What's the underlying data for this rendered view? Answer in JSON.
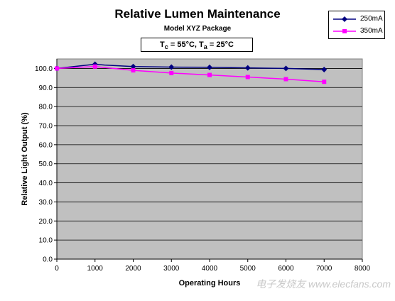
{
  "chart_data": {
    "type": "line",
    "title": "Relative Lumen Maintenance",
    "subtitle": "Model XYZ Package",
    "conditions": {
      "tc_label": "T",
      "tc_sub": "c",
      "tc_value": " = 55°C, ",
      "ta_label": "T",
      "ta_sub": "a",
      "ta_value": " = 25°C"
    },
    "xlabel": "Operating Hours",
    "ylabel": "Relative Light Output (%)",
    "xlim": [
      0,
      8000
    ],
    "ylim": [
      0,
      105
    ],
    "xticks": [
      0,
      1000,
      2000,
      3000,
      4000,
      5000,
      6000,
      7000,
      8000
    ],
    "yticks": [
      0.0,
      10.0,
      20.0,
      30.0,
      40.0,
      50.0,
      60.0,
      70.0,
      80.0,
      90.0,
      100.0
    ],
    "grid": true,
    "plot_background": "#c0c0c0",
    "legend_position": "top-right",
    "series": [
      {
        "name": "250mA",
        "color": "#000080",
        "marker": "diamond",
        "x": [
          0,
          1000,
          1250,
          2000,
          3000,
          4000,
          5000,
          6000,
          7000
        ],
        "y": [
          100.0,
          102.2,
          101.8,
          101.0,
          100.7,
          100.6,
          100.3,
          100.0,
          99.4
        ],
        "marker_x": [
          0,
          1000,
          2000,
          3000,
          4000,
          5000,
          6000,
          7000
        ]
      },
      {
        "name": "350mA",
        "color": "#ff00ff",
        "marker": "square",
        "x": [
          0,
          1000,
          2000,
          3000,
          4000,
          5000,
          6000,
          7000
        ],
        "y": [
          100.0,
          101.0,
          99.0,
          97.6,
          96.6,
          95.5,
          94.4,
          93.0
        ],
        "marker_x": [
          0,
          1000,
          2000,
          3000,
          4000,
          5000,
          6000,
          7000
        ]
      }
    ]
  },
  "watermark": "电子发烧友 www.elecfans.com"
}
